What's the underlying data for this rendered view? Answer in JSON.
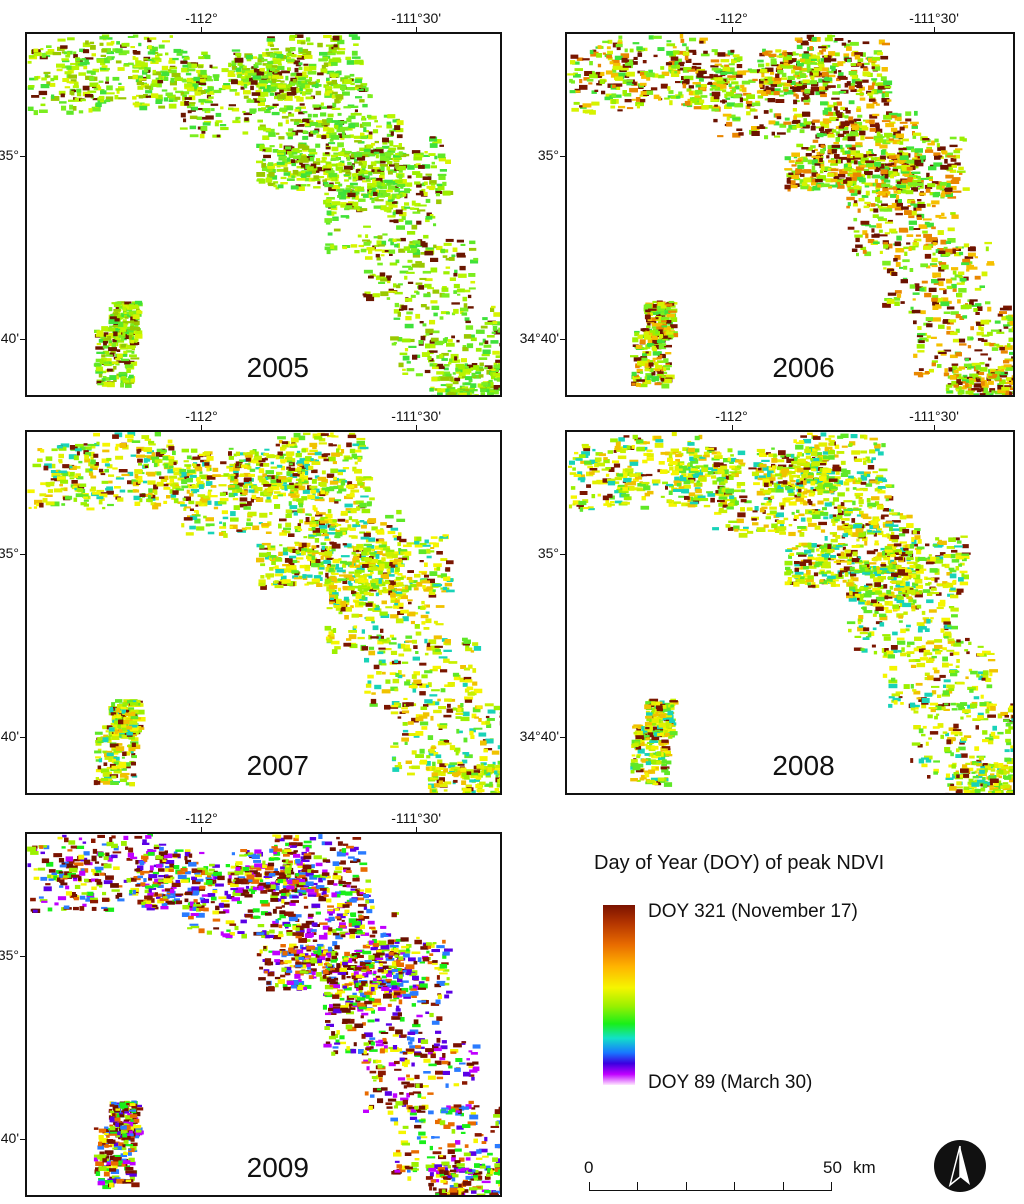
{
  "axis_labels": {
    "lon_left": "-112°",
    "lon_right": "-111°30'",
    "lat_top": "35°",
    "lat_bottom": "34°40'"
  },
  "panels": [
    {
      "year": "2005",
      "dominant": "green"
    },
    {
      "year": "2006",
      "dominant": "mixed-green-brown"
    },
    {
      "year": "2007",
      "dominant": "yellow-green"
    },
    {
      "year": "2008",
      "dominant": "yellow-green"
    },
    {
      "year": "2009",
      "dominant": "brown-purple"
    }
  ],
  "legend": {
    "title": "Day of Year (DOY) of peak NDVI",
    "max_label": "DOY 321 (November 17)",
    "min_label": "DOY 89 (March 30)",
    "colors": [
      "#7a1200",
      "#e86b00",
      "#f5f500",
      "#19ef19",
      "#12e0c8",
      "#3b00e0",
      "#c000ff",
      "#ffe6ff"
    ]
  },
  "scale_bar": {
    "start": "0",
    "end": "50",
    "unit": "km"
  },
  "north_arrow": "north-arrow-icon"
}
